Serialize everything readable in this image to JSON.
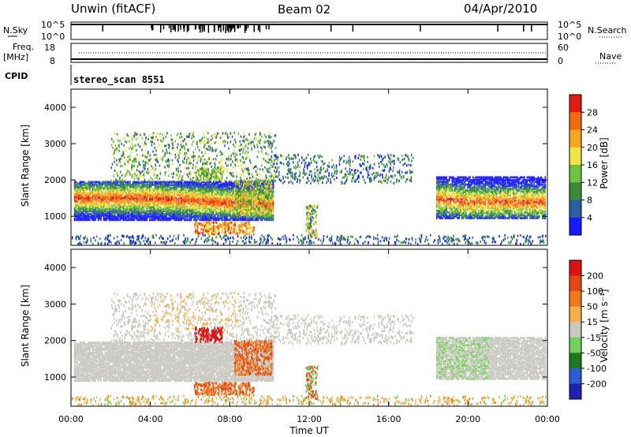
{
  "header": {
    "station": "Unwin (fitACF)",
    "beam": "Beam 02",
    "date": "04/Apr/2010"
  },
  "top_panels": {
    "nsky_label": "N.Sky",
    "nsky_ticks": [
      "10^5",
      "10^0"
    ],
    "nsearch_label": "N.Search",
    "nsearch_ticks": [
      "10^5",
      "10^0"
    ],
    "freq_label_1": "Freq.",
    "freq_label_2": "[MHz]",
    "freq_ticks": [
      "18",
      "8"
    ],
    "nave_label": "Nave",
    "nave_ticks": [
      "60",
      "0"
    ],
    "cpid_label": "CPID",
    "cpid_value": "stereo_scan 8551"
  },
  "colors": {
    "power_scale": [
      "#1919ff",
      "#2b5fa0",
      "#3a8a3a",
      "#6ec23c",
      "#f0e34a",
      "#f5a623",
      "#f26b10",
      "#e01b14"
    ],
    "velocity_scale": [
      "#2121b0",
      "#2f5bd4",
      "#1f7a1f",
      "#74d05a",
      "#c9c9c1",
      "#f6b04a",
      "#f07a1a",
      "#e34713",
      "#d81414"
    ],
    "ground_scatter": "#c9c9c1"
  },
  "chart_data": [
    {
      "type": "heatmap",
      "title": "Power",
      "xlabel": "Time UT",
      "ylabel": "Slant Range [km]",
      "x_ticks": [
        "00:00",
        "04:00",
        "08:00",
        "12:00",
        "16:00",
        "20:00",
        "00:00"
      ],
      "xlim_hours": [
        0,
        24
      ],
      "ylim": [
        200,
        4500
      ],
      "y_ticks": [
        "1000",
        "2000",
        "3000",
        "4000"
      ],
      "colorbar_label": "Power [dB]",
      "colorbar_ticks": [
        "4",
        "8",
        "12",
        "16",
        "20",
        "24",
        "28"
      ],
      "colorbar_range": [
        0,
        32
      ]
    },
    {
      "type": "heatmap",
      "title": "Velocity",
      "xlabel": "Time UT",
      "ylabel": "Slant Range [km]",
      "x_ticks": [
        "00:00",
        "04:00",
        "08:00",
        "12:00",
        "16:00",
        "20:00",
        "00:00"
      ],
      "xlim_hours": [
        0,
        24
      ],
      "ylim": [
        200,
        4500
      ],
      "y_ticks": [
        "1000",
        "2000",
        "3000",
        "4000"
      ],
      "colorbar_label": "Velocity [m s⁻¹]",
      "colorbar_ticks": [
        "200",
        "100",
        "50",
        "15",
        "-15",
        "-50",
        "-100",
        "-200"
      ]
    }
  ],
  "xaxis_title": "Time UT"
}
